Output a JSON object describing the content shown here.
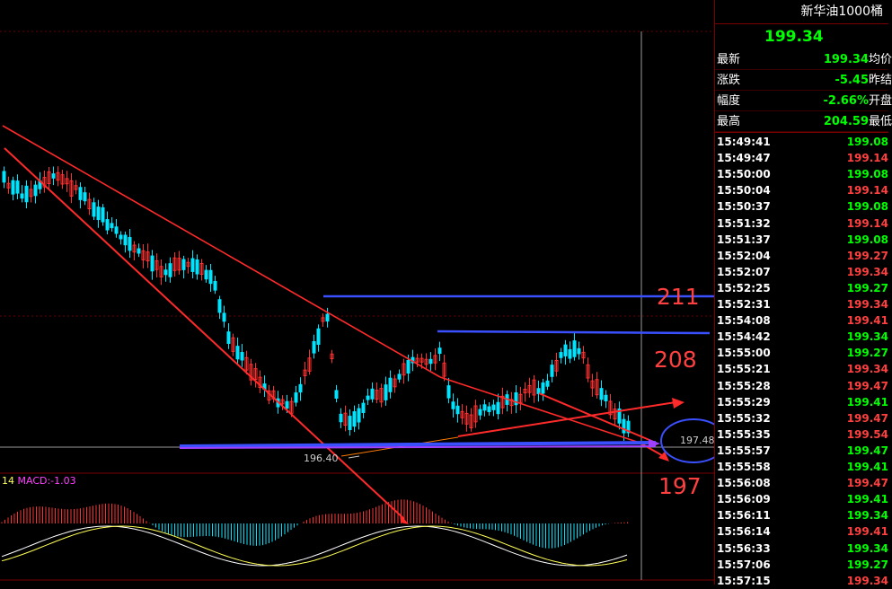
{
  "header": {
    "instrument": "新华油1000桶",
    "price": "199.34"
  },
  "quote": [
    {
      "label": "最新",
      "value": "199.34",
      "suffix": "均价",
      "color": "#00ff00"
    },
    {
      "label": "涨跌",
      "value": "-5.45",
      "suffix": "昨结",
      "color": "#00ff00"
    },
    {
      "label": "幅度",
      "value": "-2.66%",
      "suffix": "开盘",
      "color": "#00ff00"
    },
    {
      "label": "最高",
      "value": "204.59",
      "suffix": "最低",
      "color": "#00ff00"
    }
  ],
  "trades": [
    {
      "time": "15:49:41",
      "price": "199.08",
      "color": "#00ff00"
    },
    {
      "time": "15:49:47",
      "price": "199.14",
      "color": "#ff4040"
    },
    {
      "time": "15:50:00",
      "price": "199.08",
      "color": "#00ff00"
    },
    {
      "time": "15:50:04",
      "price": "199.14",
      "color": "#ff4040"
    },
    {
      "time": "15:50:37",
      "price": "199.08",
      "color": "#00ff00"
    },
    {
      "time": "15:51:32",
      "price": "199.14",
      "color": "#ff4040"
    },
    {
      "time": "15:51:37",
      "price": "199.08",
      "color": "#00ff00"
    },
    {
      "time": "15:52:04",
      "price": "199.27",
      "color": "#ff4040"
    },
    {
      "time": "15:52:07",
      "price": "199.34",
      "color": "#ff4040"
    },
    {
      "time": "15:52:25",
      "price": "199.27",
      "color": "#00ff00"
    },
    {
      "time": "15:52:31",
      "price": "199.34",
      "color": "#ff4040"
    },
    {
      "time": "15:54:08",
      "price": "199.41",
      "color": "#ff4040"
    },
    {
      "time": "15:54:42",
      "price": "199.34",
      "color": "#00ff00"
    },
    {
      "time": "15:55:00",
      "price": "199.27",
      "color": "#00ff00"
    },
    {
      "time": "15:55:21",
      "price": "199.34",
      "color": "#ff4040"
    },
    {
      "time": "15:55:28",
      "price": "199.47",
      "color": "#ff4040"
    },
    {
      "time": "15:55:29",
      "price": "199.41",
      "color": "#00ff00"
    },
    {
      "time": "15:55:32",
      "price": "199.47",
      "color": "#ff4040"
    },
    {
      "time": "15:55:35",
      "price": "199.54",
      "color": "#ff4040"
    },
    {
      "time": "15:55:57",
      "price": "199.47",
      "color": "#00ff00"
    },
    {
      "time": "15:55:58",
      "price": "199.41",
      "color": "#00ff00"
    },
    {
      "time": "15:56:08",
      "price": "199.47",
      "color": "#ff4040"
    },
    {
      "time": "15:56:09",
      "price": "199.41",
      "color": "#00ff00"
    },
    {
      "time": "15:56:11",
      "price": "199.34",
      "color": "#00ff00"
    },
    {
      "time": "15:56:14",
      "price": "199.41",
      "color": "#ff4040"
    },
    {
      "time": "15:56:33",
      "price": "199.34",
      "color": "#00ff00"
    },
    {
      "time": "15:57:06",
      "price": "199.27",
      "color": "#00ff00"
    },
    {
      "time": "15:57:15",
      "price": "199.34",
      "color": "#ff4040"
    }
  ],
  "annotations": {
    "level_211": "211",
    "level_208": "208",
    "level_197": "197",
    "low_tag": "196.40",
    "current_tag": "197.48"
  },
  "macd": {
    "period": "14",
    "label": "MACD:-1.03"
  },
  "colors": {
    "up": "#ff3030",
    "down": "#00e5ff",
    "trendline": "#ff2a2a",
    "support": "#3a50ff",
    "grid": "#7a0000"
  }
}
